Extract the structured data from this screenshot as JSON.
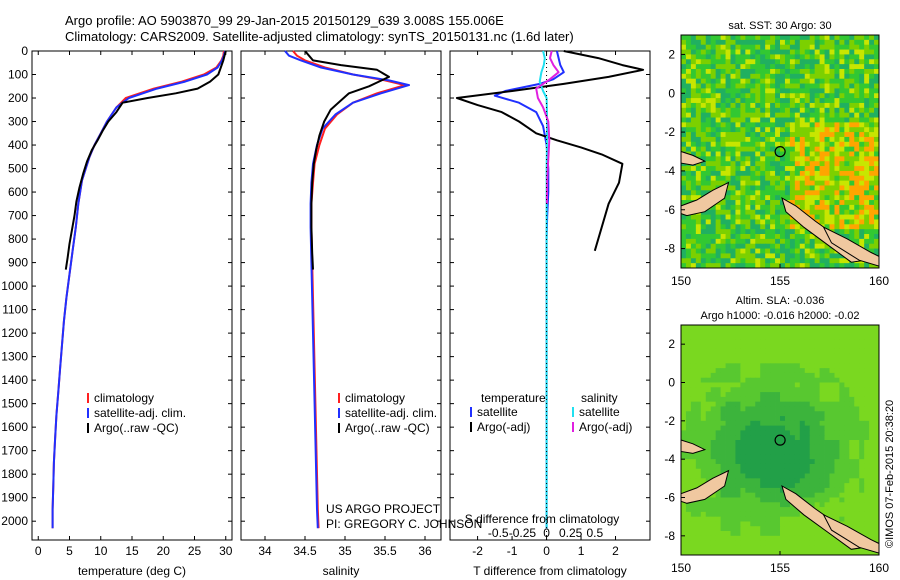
{
  "header": {
    "line1": "Argo profile: AO 5903870_99 29-Jan-2015 20150129_639 3.008S 155.006E",
    "line2": "Climatology: CARS2009. Satellite-adjusted climatology: synTS_20150131.nc (1.6d later)"
  },
  "colors": {
    "climatology": "#ff2020",
    "satellite": "#2030ff",
    "argo": "#000000",
    "argo_adj_salinity": "#e020e0",
    "satellite_salinity": "#20e0f0"
  },
  "chart_data": [
    {
      "type": "line",
      "name": "temperature",
      "xlabel": "temperature (deg C)",
      "ylabel": "",
      "xlim": [
        -1,
        31
      ],
      "ylim": [
        2080,
        0
      ],
      "xticks": [
        0,
        5,
        10,
        15,
        20,
        25,
        30
      ],
      "xtick_labels": [
        "0",
        "5",
        "10",
        "15",
        "20",
        "25",
        "30"
      ],
      "yticks": [
        0,
        100,
        200,
        300,
        400,
        500,
        600,
        700,
        800,
        900,
        1000,
        1100,
        1200,
        1300,
        1400,
        1500,
        1600,
        1700,
        1800,
        1900,
        2000
      ],
      "ytick_labels": [
        "0",
        "100",
        "200",
        "300",
        "400",
        "500",
        "600",
        "700",
        "800",
        "900",
        "1000",
        "1100",
        "1200",
        "1300",
        "1400",
        "1500",
        "1600",
        "1700",
        "1800",
        "1900",
        "2000"
      ],
      "legend": [
        "climatology",
        "satellite-adj. clim.",
        "Argo(..raw -QC)"
      ],
      "series": [
        {
          "name": "climatology",
          "color": "#ff2020",
          "x": [
            29.7,
            29.6,
            29.3,
            28.5,
            26.5,
            23,
            18.5,
            14,
            12.5,
            11,
            10,
            9,
            8.2,
            7,
            6.4,
            6,
            5.5,
            5,
            4.5,
            4.1,
            3.8,
            3.5,
            3.2,
            2.9,
            2.7,
            2.5,
            2.4,
            2.3,
            2.3
          ],
          "y": [
            0,
            20,
            40,
            70,
            100,
            130,
            160,
            200,
            240,
            300,
            350,
            400,
            450,
            550,
            650,
            750,
            850,
            950,
            1050,
            1150,
            1250,
            1350,
            1450,
            1550,
            1650,
            1750,
            1850,
            1950,
            2030
          ]
        },
        {
          "name": "satellite-adj. clim.",
          "color": "#2030ff",
          "x": [
            29.9,
            29.7,
            29.4,
            28.7,
            27,
            23.5,
            19,
            14.5,
            12.5,
            11,
            10,
            9,
            8.2,
            7,
            6.4,
            6,
            5.5,
            5,
            4.5,
            4.1,
            3.8,
            3.5,
            3.2,
            2.9,
            2.7,
            2.5,
            2.4,
            2.3,
            2.3
          ],
          "y": [
            0,
            20,
            40,
            70,
            100,
            130,
            160,
            200,
            240,
            300,
            350,
            400,
            450,
            550,
            650,
            750,
            850,
            950,
            1050,
            1150,
            1250,
            1350,
            1450,
            1550,
            1650,
            1750,
            1850,
            1950,
            2030
          ]
        },
        {
          "name": "Argo(..raw -QC)",
          "color": "#000000",
          "x": [
            30,
            29.8,
            29.6,
            29.2,
            28.8,
            27.5,
            25.5,
            22,
            17.5,
            13.5,
            12.5,
            11.2,
            10.3,
            9.5,
            8.6,
            7.8,
            7.2,
            6.6,
            6.1,
            5.8,
            5.4,
            5,
            4.7,
            4.4
          ],
          "y": [
            0,
            20,
            40,
            70,
            100,
            130,
            160,
            180,
            200,
            220,
            260,
            300,
            340,
            380,
            420,
            470,
            520,
            580,
            640,
            700,
            760,
            820,
            880,
            930
          ]
        }
      ]
    },
    {
      "type": "line",
      "name": "salinity",
      "xlabel": "salinity",
      "xlim": [
        33.7,
        36.2
      ],
      "ylim": [
        2080,
        0
      ],
      "xticks": [
        34,
        34.5,
        35,
        35.5,
        36
      ],
      "xtick_labels": [
        "34",
        "34.5",
        "35",
        "35.5",
        "36"
      ],
      "legend": [
        "climatology",
        "satellite-adj. clim.",
        "Argo(..raw -QC)"
      ],
      "credit_line1": "US ARGO PROJECT",
      "credit_line2": "PI: GREGORY C. JOHNSON",
      "series": [
        {
          "name": "climatology",
          "color": "#ff2020",
          "x": [
            34.35,
            34.4,
            34.5,
            34.75,
            35.1,
            35.5,
            35.75,
            35.4,
            35.1,
            34.9,
            34.75,
            34.68,
            34.62,
            34.6,
            34.58,
            34.58,
            34.59,
            34.6,
            34.61,
            34.62,
            34.63,
            34.64,
            34.65,
            34.66,
            34.67
          ],
          "y": [
            0,
            20,
            40,
            70,
            100,
            125,
            145,
            180,
            220,
            270,
            330,
            400,
            480,
            560,
            650,
            750,
            900,
            1050,
            1200,
            1350,
            1500,
            1650,
            1800,
            1950,
            2030
          ]
        },
        {
          "name": "satellite-adj. clim.",
          "color": "#2030ff",
          "x": [
            34.25,
            34.3,
            34.45,
            34.7,
            35.1,
            35.55,
            35.8,
            35.45,
            35.1,
            34.88,
            34.72,
            34.65,
            34.6,
            34.58,
            34.57,
            34.57,
            34.58,
            34.59,
            34.6,
            34.61,
            34.62,
            34.63,
            34.64,
            34.65,
            34.66
          ],
          "y": [
            0,
            20,
            40,
            70,
            100,
            125,
            145,
            180,
            220,
            270,
            330,
            400,
            480,
            560,
            650,
            750,
            900,
            1050,
            1200,
            1350,
            1500,
            1650,
            1800,
            1950,
            2030
          ]
        },
        {
          "name": "Argo(..raw -QC)",
          "color": "#000000",
          "x": [
            34.5,
            34.55,
            34.6,
            34.95,
            35.4,
            35.55,
            35.3,
            35.05,
            34.95,
            34.82,
            34.74,
            34.68,
            34.64,
            34.61,
            34.59,
            34.58,
            34.58,
            34.59,
            34.6
          ],
          "y": [
            0,
            20,
            40,
            60,
            80,
            110,
            150,
            180,
            210,
            250,
            300,
            360,
            420,
            480,
            560,
            650,
            750,
            860,
            930
          ]
        }
      ]
    },
    {
      "type": "line",
      "name": "difference",
      "xlabel": "T difference from climatology",
      "top_axis_label": "S difference from climatology",
      "xlim": [
        -2.8,
        3.0
      ],
      "ylim": [
        2080,
        0
      ],
      "xticks": [
        -2,
        -1,
        0,
        1,
        2
      ],
      "xtick_labels": [
        "-2",
        "-1",
        "0",
        "1",
        "2"
      ],
      "sticks": [
        -0.5,
        -0.25,
        0,
        0.25,
        0.5
      ],
      "stick_labels": [
        "-0.5",
        "-0.25",
        "0",
        "0.25",
        "0.5"
      ],
      "legend_headers": [
        "temperature",
        "salinity"
      ],
      "legend": [
        "satellite",
        "Argo(-adj)",
        "satellite",
        "Argo(-adj)"
      ],
      "series": [
        {
          "name": "T satellite",
          "color": "#2030ff",
          "x": [
            0.3,
            0.35,
            0.4,
            0.5,
            0.2,
            -0.2,
            -1.2,
            -1.5,
            -0.8,
            -0.3,
            -0.1,
            0,
            0.05,
            0.05,
            0.02,
            0,
            0,
            0,
            0,
            0,
            0,
            0
          ],
          "y": [
            0,
            30,
            60,
            90,
            120,
            140,
            170,
            190,
            220,
            260,
            320,
            400,
            500,
            600,
            700,
            800,
            1000,
            1200,
            1400,
            1600,
            1800,
            2030
          ]
        },
        {
          "name": "T Argo(-adj)",
          "color": "#000000",
          "x": [
            0.5,
            1.5,
            2.2,
            2.8,
            1.8,
            0.5,
            -1.0,
            -2.6,
            -2.0,
            -1.3,
            -0.8,
            -0.3,
            0.3,
            1.0,
            1.6,
            2.2,
            2.1,
            1.8,
            1.6,
            1.4
          ],
          "y": [
            0,
            30,
            60,
            80,
            110,
            140,
            170,
            200,
            230,
            260,
            300,
            350,
            380,
            410,
            440,
            480,
            560,
            650,
            750,
            850
          ]
        },
        {
          "name": "S satellite",
          "color": "#20e0f0",
          "x": [
            -0.1,
            -0.05,
            -0.08,
            -0.15,
            -0.2,
            -0.1,
            0,
            0.02,
            0,
            0,
            0,
            0,
            0,
            0
          ],
          "y": [
            0,
            30,
            60,
            90,
            130,
            170,
            200,
            300,
            500,
            800,
            1100,
            1400,
            1700,
            2030
          ]
        },
        {
          "name": "S Argo(-adj)",
          "color": "#e020e0",
          "x": [
            0.15,
            0.1,
            0.2,
            0.35,
            0.1,
            -0.3,
            -0.25,
            -0.1,
            0.05,
            0.08,
            0.05,
            0.02,
            0.01
          ],
          "y": [
            0,
            30,
            60,
            90,
            120,
            160,
            200,
            240,
            300,
            380,
            460,
            550,
            650
          ]
        }
      ]
    },
    {
      "type": "heatmap",
      "name": "sst_map",
      "title": "sat. SST: 30  Argo: 30",
      "xlim": [
        150,
        160
      ],
      "ylim": [
        -9,
        3
      ],
      "xticks": [
        150,
        155,
        160
      ],
      "xtick_labels": [
        "150",
        "155",
        "160"
      ],
      "yticks": [
        2,
        0,
        -2,
        -4,
        -6,
        -8
      ],
      "ytick_labels": [
        "2",
        "0",
        "-2",
        "-4",
        "-6",
        "-8"
      ],
      "marker": {
        "lon": 155.006,
        "lat": -3.008
      }
    },
    {
      "type": "heatmap",
      "name": "sla_map",
      "title": "Altim. SLA: -0.036",
      "title2": "Argo h1000: -0.016 h2000: -0.02",
      "xlim": [
        150,
        160
      ],
      "ylim": [
        -9,
        3
      ],
      "xticks": [
        150,
        155,
        160
      ],
      "xtick_labels": [
        "150",
        "155",
        "160"
      ],
      "yticks": [
        2,
        0,
        -2,
        -4,
        -6,
        -8
      ],
      "ytick_labels": [
        "2",
        "0",
        "-2",
        "-4",
        "-6",
        "-8"
      ],
      "marker": {
        "lon": 155.006,
        "lat": -3.008
      }
    }
  ],
  "footer": {
    "stamp": "©IMOS 07-Feb-2015 20:38:20"
  }
}
